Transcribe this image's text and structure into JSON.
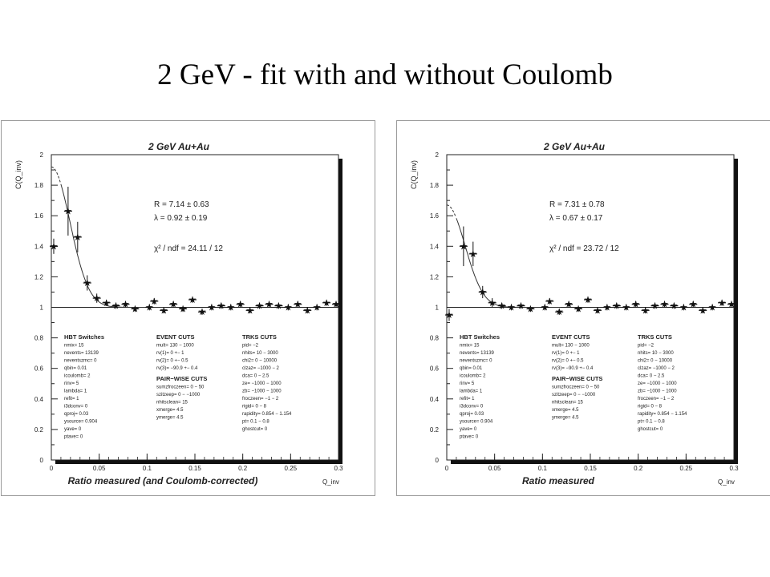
{
  "slide": {
    "title": "2 GeV - fit with and without Coulomb"
  },
  "chart_data": [
    {
      "type": "scatter",
      "title": "2 GeV Au+Au",
      "xlabel": "Ratio measured (and Coulomb-corrected)",
      "xunit_label": "Q_inv",
      "ylabel": "C(Q_inv)",
      "xlim": [
        0,
        0.3
      ],
      "ylim": [
        0,
        2
      ],
      "xticks": [
        "0",
        "0.05",
        "0.1",
        "0.15",
        "0.2",
        "0.25",
        "0.3"
      ],
      "yticks": [
        "0",
        "0.2",
        "0.4",
        "0.6",
        "0.8",
        "1",
        "1.2",
        "1.4",
        "1.6",
        "1.8",
        "2"
      ],
      "grid": false,
      "reference_line_y": 1,
      "fit_params": {
        "R": 7.14,
        "lambda": 0.92
      },
      "stats_text": [
        "R = 7.14 ± 0.63",
        "λ = 0.92 ± 0.19",
        "χ² / ndf = 24.11 / 12"
      ],
      "x": [
        0.0025,
        0.0175,
        0.0275,
        0.0375,
        0.0475,
        0.0575,
        0.0675,
        0.0775,
        0.0875,
        0.1025,
        0.1075,
        0.1175,
        0.1275,
        0.1375,
        0.1475,
        0.1575,
        0.1675,
        0.1775,
        0.1875,
        0.1975,
        0.2075,
        0.2175,
        0.2275,
        0.2375,
        0.2475,
        0.2575,
        0.2675,
        0.2775,
        0.2875,
        0.2975
      ],
      "y": [
        1.4,
        1.63,
        1.46,
        1.16,
        1.06,
        1.03,
        1.01,
        1.02,
        0.99,
        1.0,
        1.04,
        0.98,
        1.02,
        0.99,
        1.05,
        0.97,
        1.0,
        1.01,
        1.0,
        1.02,
        0.98,
        1.01,
        1.02,
        1.01,
        1.0,
        1.02,
        0.98,
        1.0,
        1.03,
        1.02
      ],
      "yerr": [
        0.05,
        0.16,
        0.1,
        0.05,
        0.03,
        0.02,
        0.02,
        0.02,
        0.02,
        0.02,
        0.02,
        0.02,
        0.02,
        0.02,
        0.02,
        0.02,
        0.02,
        0.02,
        0.02,
        0.02,
        0.02,
        0.02,
        0.02,
        0.02,
        0.02,
        0.02,
        0.02,
        0.02,
        0.02,
        0.02
      ],
      "info_columns": [
        {
          "header": "HBT Switches",
          "lines": [
            "nmix= 15",
            "nevents= 13139",
            "neventszmc= 0",
            "qbin= 0.01",
            "icoulomb= 2",
            "rinv= 5",
            "lambda= 1",
            "refit= 1",
            "i3dconv= 0",
            "qproj= 0.03",
            "ysource= 0.904",
            "yave= 0",
            "ptave= 0"
          ]
        },
        {
          "header": "EVENT CUTS",
          "lines": [
            "mult= 130 − 1000",
            "rv(1)= 0 +− 1",
            "rv(2)= 0 +− 0.5",
            "rv(3)= −90.9 +− 0.4"
          ],
          "header2": "PAIR−WISE CUTS",
          "lines2": [
            "sumzfroczeen= 0 − 50",
            "szitzeep= 0 − −1000",
            "nhitsclean= 15",
            "xmerge= 4.5",
            "ymerge= 4.5"
          ]
        },
        {
          "header": "TRKS CUTS",
          "lines": [
            "pid= −2",
            "nhits= 10 − 3000",
            "chi2= 0 − 10000",
            "clzaz= −1000 − 2",
            "dca= 0 − 2.5",
            "ze= −1000 − 1000",
            "zb= −1000 − 1000",
            "froczeen= −1 − 2",
            "rigid= 0 − 8",
            "rapidity= 0.854 − 1.154",
            "pt= 0.1 − 0.8",
            "ghostcut= 0"
          ]
        }
      ]
    },
    {
      "type": "scatter",
      "title": "2 GeV Au+Au",
      "xlabel": "Ratio measured",
      "xunit_label": "Q_inv",
      "ylabel": "C(Q_inv)",
      "xlim": [
        0,
        0.3
      ],
      "ylim": [
        0,
        2
      ],
      "xticks": [
        "0",
        "0.05",
        "0.1",
        "0.15",
        "0.2",
        "0.25",
        "0.3"
      ],
      "yticks": [
        "0",
        "0.2",
        "0.4",
        "0.6",
        "0.8",
        "1",
        "1.2",
        "1.4",
        "1.6",
        "1.8",
        "2"
      ],
      "grid": false,
      "reference_line_y": 1,
      "fit_params": {
        "R": 7.31,
        "lambda": 0.67
      },
      "stats_text": [
        "R = 7.31 ± 0.78",
        "λ = 0.67 ± 0.17",
        "χ² / ndf = 23.72 / 12"
      ],
      "x": [
        0.0025,
        0.0175,
        0.0275,
        0.0375,
        0.0475,
        0.0575,
        0.0675,
        0.0775,
        0.0875,
        0.1025,
        0.1075,
        0.1175,
        0.1275,
        0.1375,
        0.1475,
        0.1575,
        0.1675,
        0.1775,
        0.1875,
        0.1975,
        0.2075,
        0.2175,
        0.2275,
        0.2375,
        0.2475,
        0.2575,
        0.2675,
        0.2775,
        0.2875,
        0.2975
      ],
      "y": [
        0.95,
        1.4,
        1.35,
        1.1,
        1.03,
        1.01,
        1.0,
        1.01,
        0.99,
        1.0,
        1.04,
        0.97,
        1.02,
        0.99,
        1.05,
        0.98,
        1.0,
        1.01,
        1.0,
        1.02,
        0.98,
        1.01,
        1.02,
        1.01,
        1.0,
        1.02,
        0.98,
        1.0,
        1.03,
        1.02
      ],
      "yerr": [
        0.04,
        0.13,
        0.08,
        0.04,
        0.03,
        0.02,
        0.02,
        0.02,
        0.02,
        0.02,
        0.02,
        0.02,
        0.02,
        0.02,
        0.02,
        0.02,
        0.02,
        0.02,
        0.02,
        0.02,
        0.02,
        0.02,
        0.02,
        0.02,
        0.02,
        0.02,
        0.02,
        0.02,
        0.02,
        0.02
      ],
      "info_columns": [
        {
          "header": "HBT Switches",
          "lines": [
            "nmix= 15",
            "nevents= 13139",
            "neventszmc= 0",
            "qbin= 0.01",
            "icoulomb= 2",
            "rinv= 5",
            "lambda= 1",
            "refit= 1",
            "i3dconv= 0",
            "qproj= 0.03",
            "ysource= 0.904",
            "yave= 0",
            "ptave= 0"
          ]
        },
        {
          "header": "EVENT CUTS",
          "lines": [
            "mult= 130 − 1000",
            "rv(1)= 0 +− 1",
            "rv(2)= 0 +− 0.5",
            "rv(3)= −90.9 +− 0.4"
          ],
          "header2": "PAIR−WISE CUTS",
          "lines2": [
            "sumzfroczeen= 0 − 50",
            "szitzeep= 0 − −1000",
            "nhitsclean= 15",
            "xmerge= 4.5",
            "ymerge= 4.5"
          ]
        },
        {
          "header": "TRKS CUTS",
          "lines": [
            "pid= −2",
            "nhits= 10 − 3000",
            "chi2= 0 − 10000",
            "clzaz= −1000 − 2",
            "dca= 0 − 2.5",
            "ze= −1000 − 1000",
            "zb= −1000 − 1000",
            "froczeen= −1 − 2",
            "rigid= 0 − 8",
            "rapidity= 0.854 − 1.154",
            "pt= 0.1 − 0.8",
            "ghostcut= 0"
          ]
        }
      ]
    }
  ]
}
